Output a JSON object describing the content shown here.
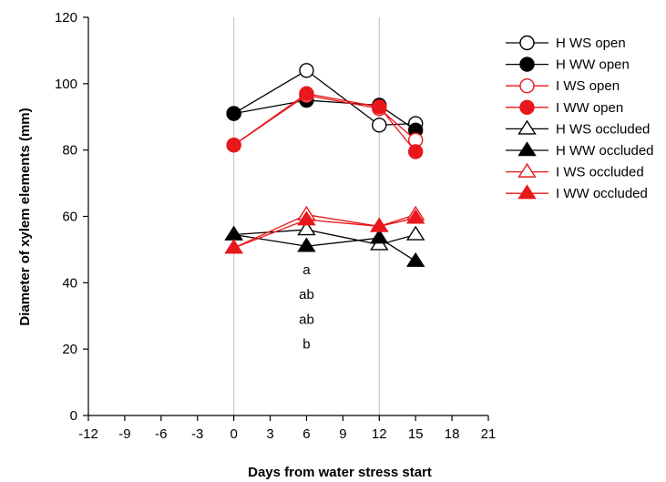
{
  "chart_data": {
    "type": "line",
    "xlabel": "Days from water stress start",
    "ylabel": "Diameter of xylem elements (mm)",
    "xlim": [
      -12,
      21
    ],
    "ylim": [
      0,
      120
    ],
    "xticks": [
      -12,
      -9,
      -6,
      -3,
      0,
      3,
      6,
      9,
      12,
      15,
      18,
      21
    ],
    "yticks": [
      0,
      20,
      40,
      60,
      80,
      100,
      120
    ],
    "x": [
      0,
      6,
      12,
      15
    ],
    "reference_lines_x": [
      0,
      12
    ],
    "grid": false,
    "legend_position": "top-right",
    "series": [
      {
        "name": "H WS open",
        "color": "#000000",
        "marker": "circle",
        "filled": false,
        "values": [
          91,
          104,
          87.5,
          88
        ]
      },
      {
        "name": "H WW open",
        "color": "#000000",
        "marker": "circle",
        "filled": true,
        "values": [
          91,
          95,
          93.5,
          86
        ]
      },
      {
        "name": "I WS open",
        "color": "#e8171b",
        "marker": "circle",
        "filled": false,
        "values": [
          81.5,
          96.5,
          92.5,
          83
        ]
      },
      {
        "name": "I WW open",
        "color": "#e8171b",
        "marker": "circle",
        "filled": true,
        "values": [
          81.5,
          97,
          93,
          79.5
        ]
      },
      {
        "name": "H WS occluded",
        "color": "#000000",
        "marker": "triangle",
        "filled": false,
        "values": [
          54.5,
          56,
          51.5,
          54.5
        ]
      },
      {
        "name": "H WW occluded",
        "color": "#000000",
        "marker": "triangle",
        "filled": true,
        "values": [
          54.5,
          51,
          53.5,
          46.5
        ]
      },
      {
        "name": "I WS occluded",
        "color": "#e8171b",
        "marker": "triangle",
        "filled": false,
        "values": [
          50.5,
          60.5,
          57,
          60.5
        ]
      },
      {
        "name": "I WW occluded",
        "color": "#e8171b",
        "marker": "triangle",
        "filled": true,
        "values": [
          50.5,
          59,
          57,
          59.5
        ]
      }
    ],
    "annotations": [
      {
        "text": "a",
        "x": 6,
        "y": 44
      },
      {
        "text": "ab",
        "x": 6,
        "y": 36.5
      },
      {
        "text": "ab",
        "x": 6,
        "y": 29
      },
      {
        "text": "b",
        "x": 6,
        "y": 21.5
      }
    ]
  }
}
